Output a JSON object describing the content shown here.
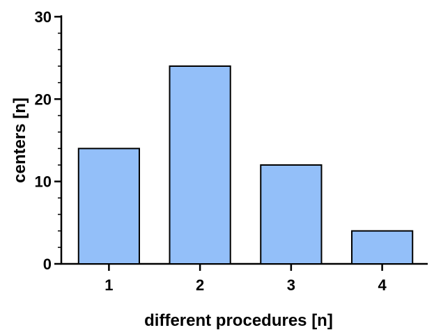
{
  "chart_data": {
    "type": "bar",
    "title": "",
    "xlabel": "different procedures [n]",
    "ylabel": "centers [n]",
    "categories": [
      "1",
      "2",
      "3",
      "4"
    ],
    "values": [
      14,
      24,
      12,
      4
    ],
    "ylim": [
      0,
      30
    ],
    "yticks": [
      "0",
      "10",
      "20",
      "30"
    ],
    "grid": false,
    "bar_color": "#93bff9",
    "edge_color": "#000000"
  }
}
